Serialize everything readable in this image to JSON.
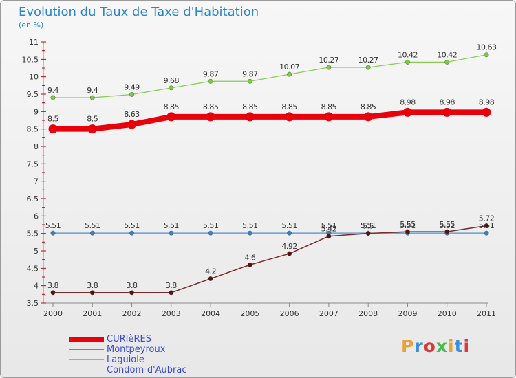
{
  "header": {
    "title": "Evolution du Taux de Taxe d'Habitation",
    "subtitle": "(en %)"
  },
  "logo": {
    "text": "Proxiti",
    "colors": [
      "#e8a23a",
      "#3a8fd8",
      "#d83a3a",
      "#4ab84a",
      "#e8a23a",
      "#3a8fd8",
      "#d83a3a"
    ]
  },
  "chart_data": {
    "type": "line",
    "title": "Evolution du Taux de Taxe d'Habitation",
    "subtitle": "(en %)",
    "xlabel": "",
    "ylabel": "",
    "x": [
      "2000",
      "2001",
      "2002",
      "2003",
      "2004",
      "2005",
      "2006",
      "2007",
      "2008",
      "2009",
      "2010",
      "2011"
    ],
    "ylim": [
      3.5,
      11
    ],
    "yticks": [
      "3.5",
      "4",
      "4.5",
      "5",
      "5.5",
      "6",
      "6.5",
      "7",
      "7.5",
      "8",
      "8.5",
      "9",
      "9.5",
      "10",
      "10.5",
      "11"
    ],
    "grid": false,
    "legend_position": "bottom-left",
    "series": [
      {
        "name": "CURIèRES",
        "color": "#e8000a",
        "values": [
          8.5,
          8.5,
          8.63,
          8.85,
          8.85,
          8.85,
          8.85,
          8.85,
          8.85,
          8.98,
          8.98,
          8.98
        ],
        "labels": [
          "8.5",
          "8.5",
          "8.63",
          "8.85",
          "8.85",
          "8.85",
          "8.85",
          "8.85",
          "8.85",
          "8.98",
          "8.98",
          "8.98"
        ]
      },
      {
        "name": "Montpeyroux",
        "color": "#4a90d0",
        "values": [
          5.51,
          5.51,
          5.51,
          5.51,
          5.51,
          5.51,
          5.51,
          5.51,
          5.51,
          5.51,
          5.51,
          5.51
        ],
        "labels": [
          "5.51",
          "5.51",
          "5.51",
          "5.51",
          "5.51",
          "5.51",
          "5.51",
          "5.51",
          "5.51",
          "5.51",
          "5.51",
          "5.51"
        ]
      },
      {
        "name": "Laguiole",
        "color": "#88cc55",
        "values": [
          9.4,
          9.4,
          9.49,
          9.68,
          9.87,
          9.87,
          10.07,
          10.27,
          10.27,
          10.42,
          10.42,
          10.63
        ],
        "labels": [
          "9.4",
          "9.4",
          "9.49",
          "9.68",
          "9.87",
          "9.87",
          "10.07",
          "10.27",
          "10.27",
          "10.42",
          "10.42",
          "10.63"
        ]
      },
      {
        "name": "Condom-d'Aubrac",
        "color": "#7a2a2a",
        "values": [
          3.8,
          3.8,
          3.8,
          3.8,
          4.2,
          4.6,
          4.92,
          5.42,
          5.5,
          5.55,
          5.55,
          5.72
        ],
        "labels": [
          "3.8",
          "3.8",
          "3.8",
          "3.8",
          "4.2",
          "4.6",
          "4.92",
          "5.42",
          "5.5",
          "5.55",
          "5.55",
          "5.72"
        ]
      }
    ]
  }
}
